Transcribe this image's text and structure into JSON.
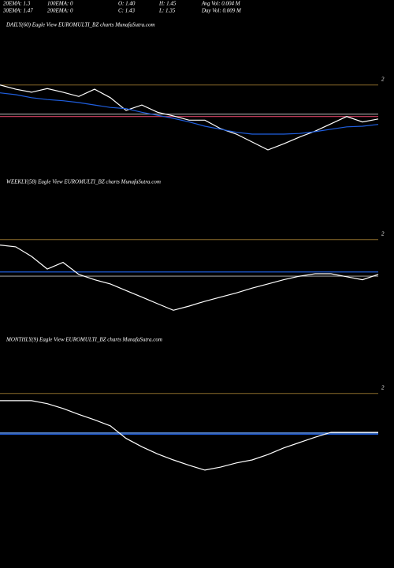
{
  "header": [
    [
      "20EMA: 1.3",
      "100EMA: 0",
      "O: 1.40",
      "H: 1.45",
      "Avg Vol: 0.004  M"
    ],
    [
      "30EMA: 1.47",
      "200EMA: 0",
      "C: 1.43",
      "L: 1.35",
      "Day Vol: 0.009 M"
    ]
  ],
  "chart_data": [
    {
      "type": "line",
      "title": "DAILY(60) Eagle  View  EUROMULTI_BZ charts MunafaSutra.com",
      "ylim": [
        0.8,
        2.1
      ],
      "yticks": [
        2
      ],
      "grid": true,
      "grid_color": "#8a6a2a",
      "series": [
        {
          "color": "#ffffff",
          "values": [
            2.0,
            1.93,
            1.88,
            1.94,
            1.88,
            1.81,
            1.93,
            1.79,
            1.58,
            1.67,
            1.55,
            1.49,
            1.42,
            1.42,
            1.28,
            1.19,
            1.06,
            0.93,
            1.03,
            1.14,
            1.24,
            1.36,
            1.48,
            1.39,
            1.44
          ]
        },
        {
          "color": "#1f5fe0",
          "values": [
            1.87,
            1.84,
            1.79,
            1.76,
            1.74,
            1.71,
            1.67,
            1.63,
            1.61,
            1.55,
            1.5,
            1.45,
            1.39,
            1.32,
            1.27,
            1.22,
            1.19,
            1.19,
            1.19,
            1.2,
            1.23,
            1.27,
            1.31,
            1.32,
            1.35
          ]
        }
      ],
      "hlines": [
        {
          "color": "#9a9a9a",
          "value": 1.52
        },
        {
          "color": "#d04060",
          "value": 1.48
        }
      ]
    },
    {
      "type": "line",
      "title": "WEEKLY(58) Eagle  View  EUROMULTI_BZ charts MunafaSutra.com",
      "ylim": [
        0.6,
        2.05
      ],
      "yticks": [
        2
      ],
      "grid": true,
      "grid_color": "#8a6a2a",
      "series": [
        {
          "color": "#ffffff",
          "values": [
            1.91,
            1.88,
            1.72,
            1.51,
            1.62,
            1.42,
            1.33,
            1.26,
            1.15,
            1.04,
            0.93,
            0.82,
            0.89,
            0.97,
            1.04,
            1.11,
            1.19,
            1.26,
            1.33,
            1.39,
            1.43,
            1.43,
            1.38,
            1.33,
            1.42
          ]
        }
      ],
      "hlines": [
        {
          "color": "#1f5fe0",
          "value": 1.46
        },
        {
          "color": "#9a9a9a",
          "value": 1.39
        }
      ]
    },
    {
      "type": "line",
      "title": "MONTHLY(9) Eagle  View  EUROMULTI_BZ charts MunafaSutra.com",
      "ylim": [
        0.6,
        2.05
      ],
      "yticks": [
        2
      ],
      "grid": true,
      "grid_color": "#8a6a2a",
      "series": [
        {
          "color": "#ffffff",
          "values": [
            1.88,
            1.88,
            1.88,
            1.83,
            1.75,
            1.65,
            1.56,
            1.46,
            1.25,
            1.11,
            0.99,
            0.89,
            0.8,
            0.72,
            0.77,
            0.84,
            0.89,
            0.98,
            1.09,
            1.18,
            1.27,
            1.35,
            1.35,
            1.35,
            1.35
          ]
        }
      ],
      "hlines": [
        {
          "color": "#6fa8ff",
          "value": 1.34
        },
        {
          "color": "#1f5fe0",
          "value": 1.32
        }
      ]
    }
  ]
}
